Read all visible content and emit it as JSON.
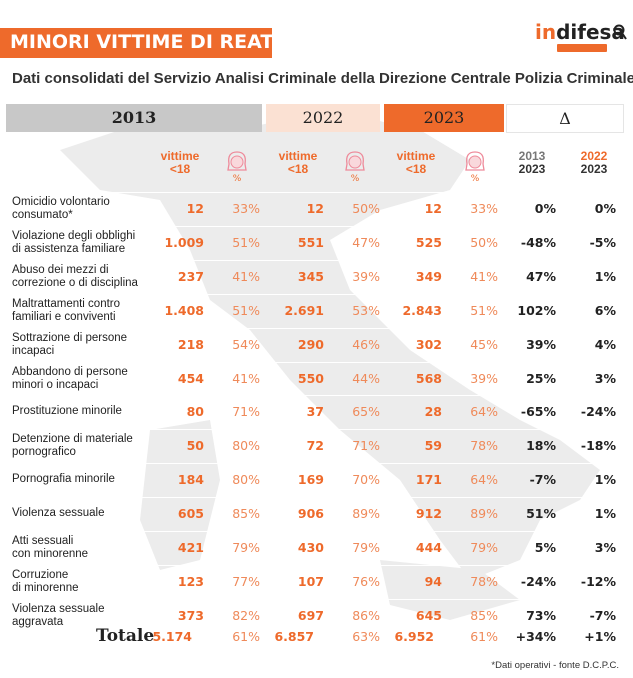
{
  "header": {
    "title": "MINORI VITTIME DI REATI IN ITALIA",
    "logo": "indifesa",
    "subtitle": "Dati consolidati del Servizio Analisi Criminale della Direzione Centrale Polizia Criminale"
  },
  "colors": {
    "accent": "#ee6a2b",
    "gray": "#c8c8c8",
    "light": "#fbe1d3"
  },
  "columns": {
    "y2013": "2013",
    "y2022": "2022",
    "y2023": "2023",
    "delta": "Δ",
    "vittime": "vittime",
    "under18": "<18",
    "pct_symbol": "%",
    "d1_top": "2013",
    "d1_bot": "2023",
    "d2_top": "2022",
    "d2_bot": "2023"
  },
  "rows": [
    {
      "label1": "Omicidio volontario",
      "label2": "consumato*",
      "v13": "12",
      "p13": "33%",
      "v22": "12",
      "p22": "50%",
      "v23": "12",
      "p23": "33%",
      "d1": "0%",
      "d2": "0%"
    },
    {
      "label1": "Violazione degli obblighi",
      "label2": "di assistenza familiare",
      "v13": "1.009",
      "p13": "51%",
      "v22": "551",
      "p22": "47%",
      "v23": "525",
      "p23": "50%",
      "d1": "-48%",
      "d2": "-5%"
    },
    {
      "label1": "Abuso dei mezzi di",
      "label2": "correzione o di disciplina",
      "v13": "237",
      "p13": "41%",
      "v22": "345",
      "p22": "39%",
      "v23": "349",
      "p23": "41%",
      "d1": "47%",
      "d2": "1%"
    },
    {
      "label1": "Maltrattamenti contro",
      "label2": "familiari e conviventi",
      "v13": "1.408",
      "p13": "51%",
      "v22": "2.691",
      "p22": "53%",
      "v23": "2.843",
      "p23": "51%",
      "d1": "102%",
      "d2": "6%"
    },
    {
      "label1": "Sottrazione di persone",
      "label2": "incapaci",
      "v13": "218",
      "p13": "54%",
      "v22": "290",
      "p22": "46%",
      "v23": "302",
      "p23": "45%",
      "d1": "39%",
      "d2": "4%"
    },
    {
      "label1": "Abbandono di persone",
      "label2": "minori o incapaci",
      "v13": "454",
      "p13": "41%",
      "v22": "550",
      "p22": "44%",
      "v23": "568",
      "p23": "39%",
      "d1": "25%",
      "d2": "3%"
    },
    {
      "label1": "Prostituzione minorile",
      "label2": "",
      "v13": "80",
      "p13": "71%",
      "v22": "37",
      "p22": "65%",
      "v23": "28",
      "p23": "64%",
      "d1": "-65%",
      "d2": "-24%"
    },
    {
      "label1": "Detenzione di materiale",
      "label2": "pornografico",
      "v13": "50",
      "p13": "80%",
      "v22": "72",
      "p22": "71%",
      "v23": "59",
      "p23": "78%",
      "d1": "18%",
      "d2": "-18%"
    },
    {
      "label1": "Pornografia minorile",
      "label2": "",
      "v13": "184",
      "p13": "80%",
      "v22": "169",
      "p22": "70%",
      "v23": "171",
      "p23": "64%",
      "d1": "-7%",
      "d2": "1%"
    },
    {
      "label1": "Violenza sessuale",
      "label2": "",
      "v13": "605",
      "p13": "85%",
      "v22": "906",
      "p22": "89%",
      "v23": "912",
      "p23": "89%",
      "d1": "51%",
      "d2": "1%"
    },
    {
      "label1": "Atti sessuali",
      "label2": "con minorenne",
      "v13": "421",
      "p13": "79%",
      "v22": "430",
      "p22": "79%",
      "v23": "444",
      "p23": "79%",
      "d1": "5%",
      "d2": "3%"
    },
    {
      "label1": "Corruzione",
      "label2": "di minorenne",
      "v13": "123",
      "p13": "77%",
      "v22": "107",
      "p22": "76%",
      "v23": "94",
      "p23": "78%",
      "d1": "-24%",
      "d2": "-12%"
    },
    {
      "label1": "Violenza sessuale",
      "label2": "aggravata",
      "v13": "373",
      "p13": "82%",
      "v22": "697",
      "p22": "86%",
      "v23": "645",
      "p23": "85%",
      "d1": "73%",
      "d2": "-7%"
    }
  ],
  "total": {
    "label": "Totale",
    "v13": "5.174",
    "p13": "61%",
    "v22": "6.857",
    "p22": "63%",
    "v23": "6.952",
    "p23": "61%",
    "d1": "+34%",
    "d2": "+1%"
  },
  "footnote": "*Dati operativi - fonte D.C.P.C."
}
